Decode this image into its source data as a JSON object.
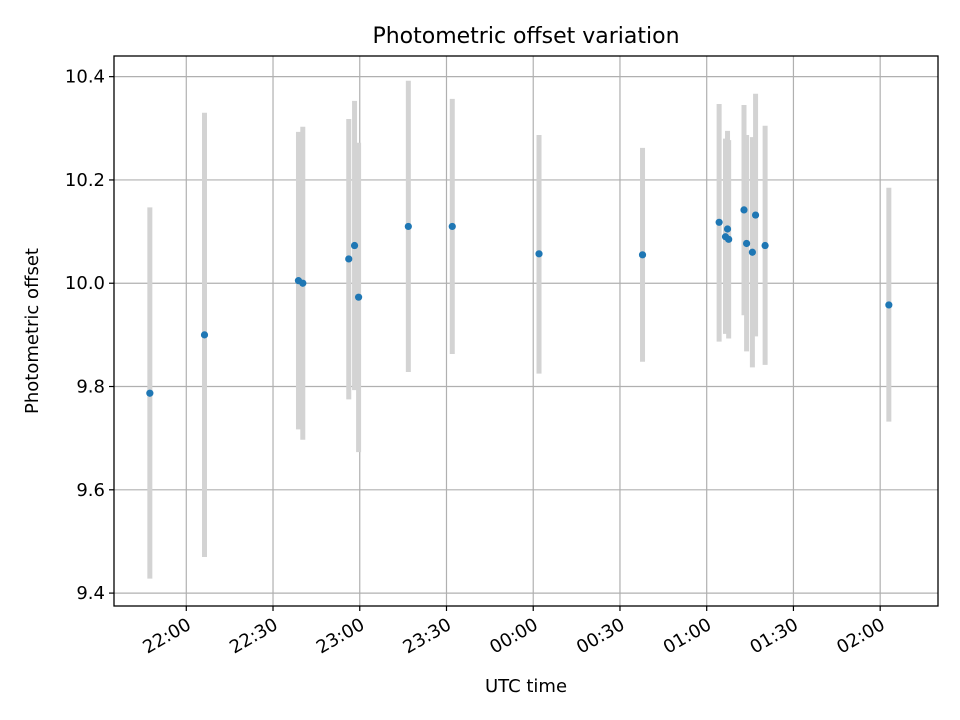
{
  "chart_data": {
    "type": "scatter",
    "title": "Photometric offset variation",
    "xlabel": "UTC time",
    "ylabel": "Photometric offset",
    "x_unit": "minutes",
    "xlim": [
      1295,
      1580
    ],
    "ylim": [
      9.375,
      10.44
    ],
    "grid": true,
    "x_ticks": [
      {
        "value": 1320,
        "label": "22:00"
      },
      {
        "value": 1350,
        "label": "22:30"
      },
      {
        "value": 1380,
        "label": "23:00"
      },
      {
        "value": 1410,
        "label": "23:30"
      },
      {
        "value": 1440,
        "label": "00:00"
      },
      {
        "value": 1470,
        "label": "00:30"
      },
      {
        "value": 1500,
        "label": "01:00"
      },
      {
        "value": 1530,
        "label": "01:30"
      },
      {
        "value": 1560,
        "label": "02:00"
      }
    ],
    "y_ticks": [
      {
        "value": 9.4,
        "label": "9.4"
      },
      {
        "value": 9.6,
        "label": "9.6"
      },
      {
        "value": 9.8,
        "label": "9.8"
      },
      {
        "value": 10.0,
        "label": "10.0"
      },
      {
        "value": 10.2,
        "label": "10.2"
      },
      {
        "value": 10.4,
        "label": "10.4"
      }
    ],
    "marker_color": "#1f77b4",
    "errorbar_color": "#d3d3d3",
    "points": [
      {
        "x": 1307.4,
        "y": 9.787,
        "y_low": 9.428,
        "y_high": 10.147
      },
      {
        "x": 1326.3,
        "y": 9.9,
        "y_low": 9.47,
        "y_high": 10.33
      },
      {
        "x": 1358.8,
        "y": 10.005,
        "y_low": 9.717,
        "y_high": 10.293
      },
      {
        "x": 1360.3,
        "y": 10.0,
        "y_low": 9.697,
        "y_high": 10.303
      },
      {
        "x": 1376.2,
        "y": 10.047,
        "y_low": 9.775,
        "y_high": 10.318
      },
      {
        "x": 1378.2,
        "y": 10.073,
        "y_low": 9.793,
        "y_high": 10.353
      },
      {
        "x": 1379.6,
        "y": 9.973,
        "y_low": 9.673,
        "y_high": 10.272
      },
      {
        "x": 1396.8,
        "y": 10.11,
        "y_low": 9.828,
        "y_high": 10.392
      },
      {
        "x": 1412.0,
        "y": 10.11,
        "y_low": 9.863,
        "y_high": 10.357
      },
      {
        "x": 1442.0,
        "y": 10.057,
        "y_low": 9.825,
        "y_high": 10.287
      },
      {
        "x": 1477.8,
        "y": 10.055,
        "y_low": 9.848,
        "y_high": 10.262
      },
      {
        "x": 1504.3,
        "y": 10.118,
        "y_low": 9.887,
        "y_high": 10.347
      },
      {
        "x": 1506.5,
        "y": 10.09,
        "y_low": 9.902,
        "y_high": 10.28
      },
      {
        "x": 1507.2,
        "y": 10.105,
        "y_low": 9.915,
        "y_high": 10.295
      },
      {
        "x": 1507.6,
        "y": 10.085,
        "y_low": 9.893,
        "y_high": 10.277
      },
      {
        "x": 1512.9,
        "y": 10.142,
        "y_low": 9.938,
        "y_high": 10.345
      },
      {
        "x": 1513.8,
        "y": 10.077,
        "y_low": 9.868,
        "y_high": 10.287
      },
      {
        "x": 1515.8,
        "y": 10.06,
        "y_low": 9.837,
        "y_high": 10.283
      },
      {
        "x": 1516.9,
        "y": 10.132,
        "y_low": 9.897,
        "y_high": 10.367
      },
      {
        "x": 1520.2,
        "y": 10.073,
        "y_low": 9.842,
        "y_high": 10.305
      },
      {
        "x": 1563.0,
        "y": 9.958,
        "y_low": 9.732,
        "y_high": 10.185
      }
    ]
  }
}
